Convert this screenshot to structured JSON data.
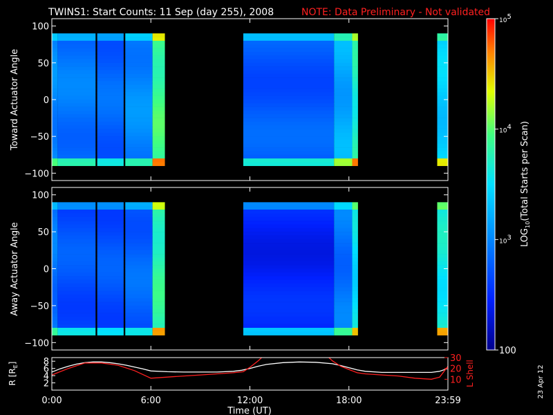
{
  "title": {
    "main": "TWINS1: Start Counts: 11 Sep (day 255), 2008",
    "note": "NOTE: Data Preliminary - Not validated",
    "main_color": "#ffffff",
    "note_color": "#ff2020"
  },
  "footer_date": "23 Apr 12",
  "chart_data": [
    {
      "type": "heatmap",
      "panel": "toward",
      "ylabel": "Toward Actuator Angle",
      "ylim": [
        -110,
        110
      ],
      "yticks": [
        "100",
        "50",
        "0",
        "−50",
        "−100"
      ],
      "ytick_values": [
        100,
        50,
        0,
        -50,
        -100
      ],
      "xlim_hours": [
        0,
        24
      ],
      "angle_range": [
        -90,
        90
      ],
      "data_intervals_hours": [
        {
          "start": 0.0,
          "end": 0.35,
          "level": 3.0
        },
        {
          "start": 0.35,
          "end": 2.65,
          "level": 2.9
        },
        {
          "start": 2.75,
          "end": 4.35,
          "level": 2.8
        },
        {
          "start": 4.45,
          "end": 6.1,
          "level": 3.0
        },
        {
          "start": 6.1,
          "end": 6.85,
          "level": 3.9
        },
        {
          "start": 11.6,
          "end": 17.1,
          "level": 2.75
        },
        {
          "start": 17.1,
          "end": 18.2,
          "level": 3.2
        },
        {
          "start": 18.2,
          "end": 18.55,
          "level": 3.7
        },
        {
          "start": 23.35,
          "end": 24.0,
          "level": 3.4
        }
      ]
    },
    {
      "type": "heatmap",
      "panel": "away",
      "ylabel": "Away Actuator Angle",
      "ylim": [
        -110,
        110
      ],
      "yticks": [
        "100",
        "50",
        "0",
        "−50",
        "−100"
      ],
      "ytick_values": [
        100,
        50,
        0,
        -50,
        -100
      ],
      "xlim_hours": [
        0,
        24
      ],
      "angle_range": [
        -90,
        90
      ],
      "data_intervals_hours": [
        {
          "start": 0.0,
          "end": 0.35,
          "level": 2.9
        },
        {
          "start": 0.35,
          "end": 2.65,
          "level": 2.7
        },
        {
          "start": 2.75,
          "end": 4.35,
          "level": 2.7
        },
        {
          "start": 4.45,
          "end": 6.1,
          "level": 2.8
        },
        {
          "start": 6.1,
          "end": 6.85,
          "level": 3.8
        },
        {
          "start": 11.6,
          "end": 17.1,
          "level": 2.45
        },
        {
          "start": 17.1,
          "end": 18.2,
          "level": 2.9
        },
        {
          "start": 18.2,
          "end": 18.55,
          "level": 3.5
        },
        {
          "start": 23.35,
          "end": 24.0,
          "level": 3.6
        }
      ]
    },
    {
      "type": "line",
      "panel": "orbit",
      "ylabel_left": "R [R",
      "ylabel_left_sub": "E",
      "ylabel_left_tail": "]",
      "ylabel_right": "L Shell",
      "yticks_left": [
        "8",
        "6",
        "4",
        "2"
      ],
      "yticks_left_values": [
        8,
        6,
        4,
        2
      ],
      "ylim_left": [
        0,
        9
      ],
      "yticks_right": [
        "30",
        "20",
        "10"
      ],
      "yticks_right_values": [
        30,
        20,
        10
      ],
      "ylim_right": [
        0,
        30
      ],
      "xlabel": "Time (UT)",
      "xticks": [
        "0:00",
        "6:00",
        "12:00",
        "18:00",
        "23:59"
      ],
      "xtick_hours": [
        0,
        6,
        12,
        18,
        24
      ],
      "series": [
        {
          "color": "#ffffff",
          "axis": "left",
          "x": [
            0,
            0.5,
            1,
            1.5,
            2,
            2.5,
            3,
            3.5,
            4,
            4.5,
            5,
            5.5,
            6,
            7,
            8,
            9,
            10,
            11,
            11.5,
            12,
            12.5,
            13,
            14,
            15,
            16,
            17,
            17.5,
            18,
            18.5,
            19,
            20,
            21,
            22,
            23,
            23.5,
            24
          ],
          "values": [
            5.0,
            5.9,
            6.6,
            7.2,
            7.6,
            7.8,
            7.8,
            7.6,
            7.3,
            6.9,
            6.4,
            5.9,
            5.3,
            5.1,
            5.0,
            5.0,
            5.0,
            5.2,
            5.5,
            6.0,
            6.6,
            7.1,
            7.6,
            7.8,
            7.7,
            7.3,
            6.8,
            6.2,
            5.6,
            5.2,
            4.9,
            4.9,
            4.9,
            4.9,
            5.2,
            6.0
          ]
        },
        {
          "color": "#ff2020",
          "axis": "right",
          "x": [
            0,
            1,
            2,
            3,
            4,
            5,
            6,
            7,
            8,
            9,
            10,
            11,
            11.6,
            12,
            12.5,
            13,
            16.5,
            17,
            17.5,
            18.5,
            19,
            20,
            21,
            22,
            23,
            23.5,
            24
          ],
          "values": [
            14,
            20,
            25,
            25,
            23,
            18,
            11,
            12,
            13,
            14,
            15,
            16,
            17,
            21,
            27,
            34,
            34,
            27,
            22,
            16,
            15,
            14,
            13,
            11,
            10,
            12,
            22
          ]
        }
      ]
    },
    {
      "type": "colorbar",
      "label_pre": "LOG",
      "label_sub": "10",
      "label_post": "(Total Starts per Scan)",
      "ticks": [
        {
          "base": "10",
          "exp": "5",
          "value": 5
        },
        {
          "base": "10",
          "exp": "4",
          "value": 4
        },
        {
          "base": "10",
          "exp": "3",
          "value": 3
        },
        {
          "plain": "100",
          "value": 2
        }
      ],
      "range": [
        2,
        5
      ]
    }
  ]
}
